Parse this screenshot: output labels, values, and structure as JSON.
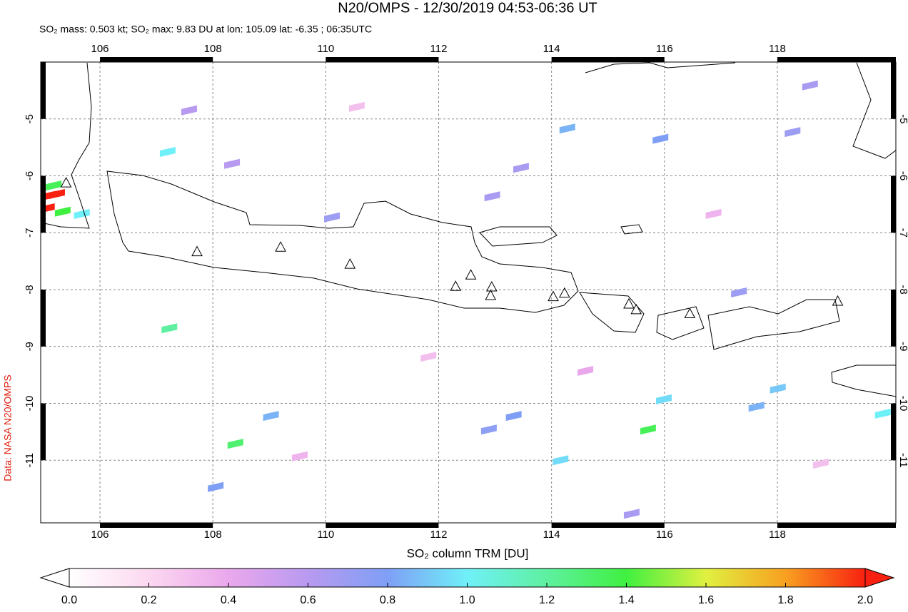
{
  "chart_data": {
    "type": "map",
    "title": "N20/OMPS - 12/30/2019 04:53-06:36 UT",
    "subtitle": "SO₂ mass: 0.503 kt; SO₂ max: 9.83 DU at lon: 105.09 lat: -6.35 ; 06:35UTC",
    "side_label": "Data: NASA N20/OMPS",
    "colorbar_label": "SO₂ column TRM [DU]",
    "xlim": [
      104.95,
      120.1
    ],
    "ylim": [
      -12.1,
      -4.0
    ],
    "xticks": [
      106,
      108,
      110,
      112,
      114,
      116,
      118
    ],
    "yticks": [
      -5,
      -6,
      -7,
      -8,
      -9,
      -10,
      -11
    ],
    "grid": true,
    "clim": [
      0,
      2
    ],
    "cticks": [
      {
        "value": 0,
        "label": "0.0"
      },
      {
        "value": 0.2,
        "label": "0.2"
      },
      {
        "value": 0.4,
        "label": "0.4"
      },
      {
        "value": 0.6,
        "label": "0.6"
      },
      {
        "value": 0.8,
        "label": "0.8"
      },
      {
        "value": 1,
        "label": "1.0"
      },
      {
        "value": 1.2,
        "label": "1.2"
      },
      {
        "value": 1.4,
        "label": "1.4"
      },
      {
        "value": 1.6,
        "label": "1.6"
      },
      {
        "value": 1.8,
        "label": "1.8"
      },
      {
        "value": 2,
        "label": "2.0"
      }
    ],
    "colorscale": [
      "#ffffff",
      "#fcd8f0",
      "#eaa8ec",
      "#b89af0",
      "#7f9ff6",
      "#6ff0f8",
      "#5ef0a0",
      "#40f040",
      "#e0f040",
      "#f8a020",
      "#f82010"
    ],
    "pixels": {
      "lon": [
        105.09,
        105.24,
        105.06,
        105.34,
        105.18,
        105.68,
        107.2,
        107.23,
        114.28,
        115.99,
        115.71,
        108.4,
        117.63,
        118.01,
        119.87,
        114.16,
        113.33,
        112.89,
        108.05,
        109.03,
        115.93,
        117.32,
        118.58,
        118.27,
        112.95,
        113.46,
        110.11,
        115.42,
        107.58,
        108.34,
        110.55,
        116.87,
        111.82,
        114.6,
        109.54,
        118.77
      ],
      "lat": [
        -6.35,
        -6.32,
        -6.57,
        -6.63,
        -6.17,
        -6.67,
        -5.58,
        -8.68,
        -5.17,
        -9.93,
        -10.46,
        -10.71,
        -10.06,
        -9.74,
        -10.18,
        -11.0,
        -10.22,
        -10.46,
        -11.47,
        -10.22,
        -5.35,
        -8.05,
        -4.41,
        -5.23,
        -6.36,
        -5.86,
        -6.73,
        -11.94,
        -4.85,
        -5.79,
        -4.79,
        -6.67,
        -9.18,
        -9.43,
        -10.93,
        -11.06
      ],
      "values": [
        9.83,
        3.1,
        2.6,
        1.4,
        1.35,
        1.0,
        1.0,
        1.2,
        0.85,
        0.95,
        1.35,
        1.3,
        0.85,
        0.9,
        1.0,
        0.95,
        0.8,
        0.75,
        0.8,
        0.85,
        0.8,
        0.7,
        0.65,
        0.7,
        0.65,
        0.65,
        0.7,
        0.65,
        0.6,
        0.6,
        0.3,
        0.35,
        0.3,
        0.4,
        0.35,
        0.3
      ]
    },
    "volcanoes": {
      "lon": [
        105.4,
        107.72,
        109.2,
        110.43,
        112.3,
        112.57,
        112.94,
        112.92,
        114.03,
        114.23,
        115.37,
        115.5,
        116.45,
        119.07
      ],
      "lat": [
        -6.12,
        -7.33,
        -7.25,
        -7.55,
        -7.94,
        -7.74,
        -7.95,
        -8.1,
        -8.12,
        -8.06,
        -8.25,
        -8.35,
        -8.42,
        -8.2
      ]
    }
  }
}
